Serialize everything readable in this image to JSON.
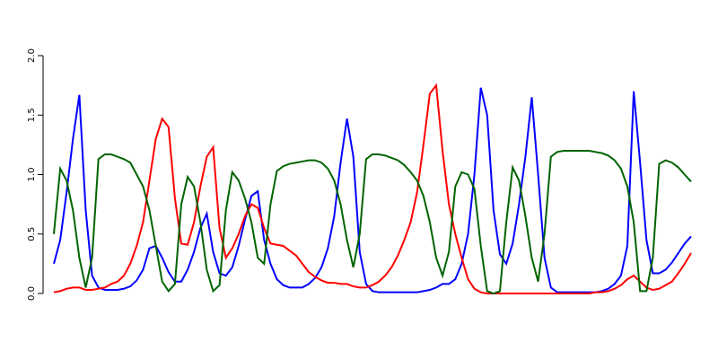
{
  "chart_data": {
    "type": "line",
    "ylim": [
      0,
      2
    ],
    "yticks": [
      {
        "value": 0,
        "label": "0.0"
      },
      0.5,
      {
        "value": 1,
        "label": "1.0"
      },
      1.5,
      {
        "value": 2,
        "label": "2.0"
      }
    ],
    "series": [
      {
        "color": "#0000ff",
        "values": [
          0.25,
          0.45,
          0.85,
          1.3,
          1.67,
          0.7,
          0.15,
          0.05,
          0.03,
          0.03,
          0.03,
          0.04,
          0.06,
          0.11,
          0.2,
          0.38,
          0.4,
          0.3,
          0.18,
          0.1,
          0.1,
          0.2,
          0.35,
          0.55,
          0.67,
          0.35,
          0.17,
          0.15,
          0.22,
          0.4,
          0.62,
          0.82,
          0.86,
          0.45,
          0.25,
          0.12,
          0.07,
          0.05,
          0.05,
          0.05,
          0.08,
          0.13,
          0.22,
          0.38,
          0.65,
          1.1,
          1.47,
          1.15,
          0.35,
          0.08,
          0.02,
          0.01,
          0.01,
          0.01,
          0.01,
          0.01,
          0.01,
          0.01,
          0.02,
          0.03,
          0.05,
          0.08,
          0.08,
          0.12,
          0.25,
          0.5,
          1.0,
          1.73,
          1.5,
          0.7,
          0.33,
          0.25,
          0.42,
          0.75,
          1.15,
          1.65,
          1.0,
          0.3,
          0.05,
          0.01,
          0.01,
          0.01,
          0.01,
          0.01,
          0.01,
          0.01,
          0.02,
          0.04,
          0.08,
          0.15,
          0.4,
          1.7,
          1.1,
          0.45,
          0.17,
          0.17,
          0.2,
          0.26,
          0.34,
          0.42,
          0.48
        ]
      },
      {
        "color": "#ff0000",
        "values": [
          0.01,
          0.02,
          0.04,
          0.05,
          0.05,
          0.03,
          0.03,
          0.04,
          0.05,
          0.08,
          0.1,
          0.15,
          0.25,
          0.4,
          0.6,
          0.95,
          1.3,
          1.47,
          1.4,
          0.8,
          0.42,
          0.41,
          0.6,
          0.9,
          1.15,
          1.23,
          0.55,
          0.3,
          0.38,
          0.5,
          0.65,
          0.75,
          0.72,
          0.55,
          0.42,
          0.41,
          0.4,
          0.36,
          0.32,
          0.25,
          0.18,
          0.14,
          0.11,
          0.09,
          0.09,
          0.08,
          0.08,
          0.06,
          0.05,
          0.05,
          0.07,
          0.1,
          0.15,
          0.22,
          0.32,
          0.45,
          0.6,
          0.85,
          1.25,
          1.68,
          1.75,
          1.2,
          0.75,
          0.5,
          0.3,
          0.12,
          0.04,
          0.01,
          0,
          0,
          0,
          0,
          0,
          0,
          0,
          0,
          0,
          0,
          0,
          0,
          0,
          0,
          0,
          0,
          0,
          0.01,
          0.01,
          0.02,
          0.04,
          0.07,
          0.12,
          0.15,
          0.1,
          0.05,
          0.03,
          0.04,
          0.07,
          0.1,
          0.17,
          0.25,
          0.34
        ]
      },
      {
        "color": "#006400",
        "values": [
          0.5,
          1.05,
          0.95,
          0.7,
          0.3,
          0.05,
          0.3,
          1.13,
          1.17,
          1.17,
          1.15,
          1.13,
          1.1,
          1.0,
          0.9,
          0.7,
          0.4,
          0.1,
          0.02,
          0.08,
          0.75,
          0.98,
          0.9,
          0.6,
          0.2,
          0.02,
          0.07,
          0.7,
          1.02,
          0.95,
          0.8,
          0.6,
          0.3,
          0.25,
          0.75,
          1.03,
          1.07,
          1.09,
          1.1,
          1.11,
          1.12,
          1.12,
          1.1,
          1.05,
          0.95,
          0.75,
          0.45,
          0.22,
          0.5,
          1.13,
          1.17,
          1.17,
          1.16,
          1.14,
          1.12,
          1.08,
          1.02,
          0.95,
          0.82,
          0.6,
          0.3,
          0.15,
          0.35,
          0.9,
          1.02,
          1.0,
          0.88,
          0.4,
          0.02,
          0,
          0.02,
          0.6,
          1.06,
          0.95,
          0.65,
          0.3,
          0.1,
          0.5,
          1.15,
          1.19,
          1.2,
          1.2,
          1.2,
          1.2,
          1.2,
          1.19,
          1.18,
          1.16,
          1.12,
          1.05,
          0.9,
          0.6,
          0.02,
          0.02,
          0.3,
          1.09,
          1.12,
          1.1,
          1.06,
          1.0,
          0.94
        ]
      }
    ]
  }
}
